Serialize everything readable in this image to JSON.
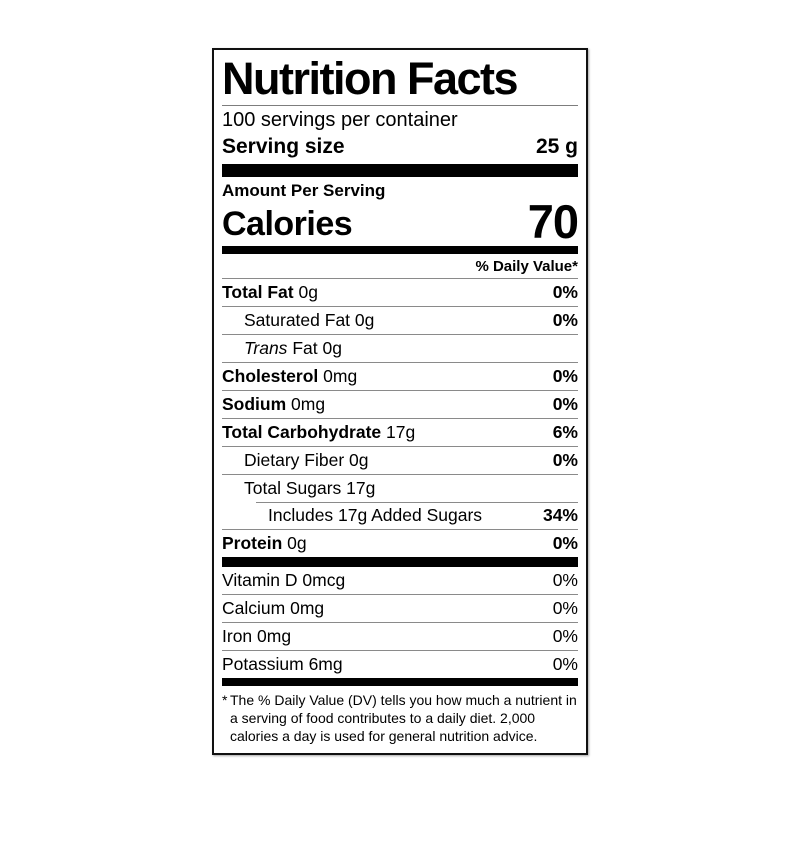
{
  "label": {
    "title": "Nutrition Facts",
    "servings_per_container": "100 servings per container",
    "serving_size": {
      "label": "Serving size",
      "value": "25 g"
    },
    "amount_per_serving": "Amount Per Serving",
    "calories": {
      "label": "Calories",
      "value": "70"
    },
    "daily_value_header": "% Daily Value*",
    "nutrients": [
      {
        "name": "Total Fat",
        "amount": "0g",
        "dv": "0%"
      },
      {
        "name": "Saturated Fat",
        "amount": "0g",
        "dv": "0%"
      },
      {
        "name": "Trans",
        "name2": "Fat",
        "amount": "0g",
        "dv": ""
      },
      {
        "name": "Cholesterol",
        "amount": "0mg",
        "dv": "0%"
      },
      {
        "name": "Sodium",
        "amount": "0mg",
        "dv": "0%"
      },
      {
        "name": "Total Carbohydrate",
        "amount": "17g",
        "dv": "6%"
      },
      {
        "name": "Dietary Fiber",
        "amount": "0g",
        "dv": "0%"
      },
      {
        "name": "Total Sugars",
        "amount": "17g",
        "dv": ""
      },
      {
        "name": "Includes 17g Added Sugars",
        "amount": "",
        "dv": "34%"
      },
      {
        "name": "Protein",
        "amount": "0g",
        "dv": "0%"
      }
    ],
    "micronutrients": [
      {
        "name": "Vitamin D",
        "amount": "0mcg",
        "dv": "0%"
      },
      {
        "name": "Calcium",
        "amount": "0mg",
        "dv": "0%"
      },
      {
        "name": "Iron",
        "amount": "0mg",
        "dv": "0%"
      },
      {
        "name": "Potassium",
        "amount": "6mg",
        "dv": "0%"
      }
    ],
    "footnote": {
      "asterisk": "*",
      "text": "The % Daily Value (DV) tells you how much a nutrient in a serving of food contributes to a daily diet. 2,000 calories a day is used for general nutrition advice."
    },
    "colors": {
      "text": "#000000",
      "background": "#ffffff",
      "hairline": "#8a8a8a"
    }
  }
}
